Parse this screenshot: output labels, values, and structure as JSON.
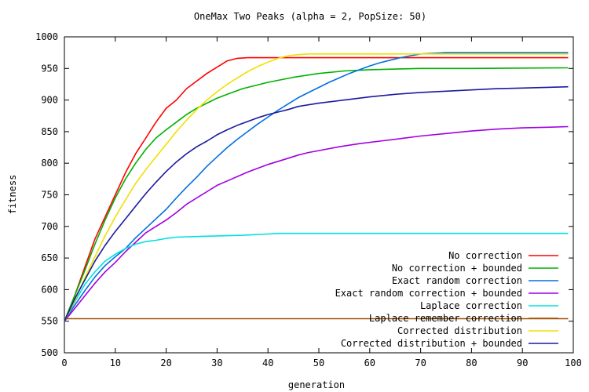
{
  "chart_data": {
    "type": "line",
    "title": "OneMax Two Peaks (alpha = 2, PopSize: 50)",
    "xlabel": "generation",
    "ylabel": "fitness",
    "xlim": [
      0,
      100
    ],
    "ylim": [
      500,
      1000
    ],
    "xticks": [
      "0",
      "10",
      "20",
      "30",
      "40",
      "50",
      "60",
      "70",
      "80",
      "90",
      "100"
    ],
    "yticks": [
      "500",
      "550",
      "600",
      "650",
      "700",
      "750",
      "800",
      "850",
      "900",
      "950",
      "1000"
    ],
    "grid": false,
    "legend_position": "bottom-right",
    "series": [
      {
        "name": "No correction",
        "color": "#ff0000",
        "points": [
          [
            0,
            550
          ],
          [
            2,
            590
          ],
          [
            4,
            635
          ],
          [
            6,
            680
          ],
          [
            8,
            715
          ],
          [
            10,
            750
          ],
          [
            12,
            785
          ],
          [
            14,
            815
          ],
          [
            16,
            840
          ],
          [
            18,
            865
          ],
          [
            20,
            887
          ],
          [
            22,
            900
          ],
          [
            24,
            918
          ],
          [
            26,
            930
          ],
          [
            28,
            942
          ],
          [
            30,
            952
          ],
          [
            32,
            962
          ],
          [
            34,
            966
          ],
          [
            36,
            967
          ],
          [
            99,
            967
          ]
        ]
      },
      {
        "name": "No correction + bounded",
        "color": "#00b000",
        "points": [
          [
            0,
            550
          ],
          [
            2,
            590
          ],
          [
            4,
            630
          ],
          [
            6,
            672
          ],
          [
            8,
            710
          ],
          [
            10,
            745
          ],
          [
            12,
            775
          ],
          [
            14,
            800
          ],
          [
            16,
            822
          ],
          [
            18,
            840
          ],
          [
            20,
            853
          ],
          [
            22,
            865
          ],
          [
            24,
            877
          ],
          [
            26,
            887
          ],
          [
            28,
            895
          ],
          [
            30,
            903
          ],
          [
            32,
            909
          ],
          [
            35,
            918
          ],
          [
            40,
            928
          ],
          [
            45,
            936
          ],
          [
            50,
            942
          ],
          [
            55,
            946
          ],
          [
            60,
            948
          ],
          [
            70,
            950
          ],
          [
            80,
            950
          ],
          [
            99,
            951
          ]
        ]
      },
      {
        "name": "Exact random correction",
        "color": "#0070e0",
        "points": [
          [
            0,
            550
          ],
          [
            2,
            575
          ],
          [
            4,
            598
          ],
          [
            6,
            620
          ],
          [
            8,
            638
          ],
          [
            10,
            652
          ],
          [
            12,
            665
          ],
          [
            14,
            682
          ],
          [
            16,
            697
          ],
          [
            18,
            712
          ],
          [
            20,
            727
          ],
          [
            22,
            745
          ],
          [
            24,
            762
          ],
          [
            26,
            778
          ],
          [
            28,
            795
          ],
          [
            30,
            810
          ],
          [
            32,
            825
          ],
          [
            34,
            838
          ],
          [
            36,
            850
          ],
          [
            38,
            862
          ],
          [
            40,
            873
          ],
          [
            42,
            884
          ],
          [
            44,
            894
          ],
          [
            46,
            904
          ],
          [
            48,
            912
          ],
          [
            50,
            920
          ],
          [
            52,
            928
          ],
          [
            54,
            935
          ],
          [
            56,
            942
          ],
          [
            58,
            948
          ],
          [
            60,
            954
          ],
          [
            62,
            959
          ],
          [
            64,
            963
          ],
          [
            66,
            967
          ],
          [
            68,
            970
          ],
          [
            70,
            973
          ],
          [
            75,
            975
          ],
          [
            99,
            975
          ]
        ]
      },
      {
        "name": "Exact random correction + bounded",
        "color": "#a000e0",
        "points": [
          [
            0,
            550
          ],
          [
            2,
            570
          ],
          [
            4,
            590
          ],
          [
            6,
            610
          ],
          [
            8,
            628
          ],
          [
            10,
            643
          ],
          [
            12,
            660
          ],
          [
            14,
            675
          ],
          [
            16,
            690
          ],
          [
            18,
            700
          ],
          [
            20,
            710
          ],
          [
            22,
            722
          ],
          [
            24,
            735
          ],
          [
            26,
            745
          ],
          [
            28,
            755
          ],
          [
            30,
            765
          ],
          [
            32,
            772
          ],
          [
            34,
            779
          ],
          [
            36,
            786
          ],
          [
            38,
            792
          ],
          [
            40,
            798
          ],
          [
            42,
            803
          ],
          [
            44,
            808
          ],
          [
            46,
            813
          ],
          [
            48,
            817
          ],
          [
            50,
            820
          ],
          [
            54,
            826
          ],
          [
            58,
            831
          ],
          [
            62,
            835
          ],
          [
            66,
            839
          ],
          [
            70,
            843
          ],
          [
            75,
            847
          ],
          [
            80,
            851
          ],
          [
            85,
            854
          ],
          [
            90,
            856
          ],
          [
            95,
            857
          ],
          [
            99,
            858
          ]
        ]
      },
      {
        "name": "Laplace correction",
        "color": "#00e0e0",
        "points": [
          [
            0,
            550
          ],
          [
            2,
            580
          ],
          [
            4,
            608
          ],
          [
            6,
            628
          ],
          [
            8,
            645
          ],
          [
            10,
            656
          ],
          [
            12,
            665
          ],
          [
            14,
            672
          ],
          [
            16,
            676
          ],
          [
            18,
            678
          ],
          [
            20,
            681
          ],
          [
            22,
            683
          ],
          [
            26,
            684
          ],
          [
            30,
            685
          ],
          [
            35,
            686
          ],
          [
            40,
            688
          ],
          [
            42,
            689
          ],
          [
            99,
            689
          ]
        ]
      },
      {
        "name": "Laplace remember correction",
        "color": "#a05000",
        "points": [
          [
            0,
            554
          ],
          [
            99,
            554
          ]
        ]
      },
      {
        "name": "Corrected distribution",
        "color": "#f0e000",
        "points": [
          [
            0,
            550
          ],
          [
            2,
            582
          ],
          [
            4,
            618
          ],
          [
            6,
            652
          ],
          [
            8,
            685
          ],
          [
            10,
            715
          ],
          [
            12,
            742
          ],
          [
            14,
            768
          ],
          [
            16,
            790
          ],
          [
            18,
            810
          ],
          [
            20,
            830
          ],
          [
            22,
            850
          ],
          [
            24,
            868
          ],
          [
            26,
            885
          ],
          [
            28,
            900
          ],
          [
            30,
            913
          ],
          [
            32,
            925
          ],
          [
            34,
            935
          ],
          [
            36,
            945
          ],
          [
            38,
            953
          ],
          [
            40,
            960
          ],
          [
            42,
            966
          ],
          [
            44,
            970
          ],
          [
            46,
            972
          ],
          [
            48,
            973
          ],
          [
            99,
            973
          ]
        ]
      },
      {
        "name": "Corrected distribution + bounded",
        "color": "#1a1aa0",
        "points": [
          [
            0,
            550
          ],
          [
            2,
            585
          ],
          [
            4,
            615
          ],
          [
            6,
            645
          ],
          [
            8,
            670
          ],
          [
            10,
            692
          ],
          [
            12,
            712
          ],
          [
            14,
            732
          ],
          [
            16,
            752
          ],
          [
            18,
            770
          ],
          [
            20,
            787
          ],
          [
            22,
            802
          ],
          [
            24,
            815
          ],
          [
            26,
            826
          ],
          [
            28,
            835
          ],
          [
            30,
            845
          ],
          [
            32,
            853
          ],
          [
            34,
            860
          ],
          [
            36,
            866
          ],
          [
            38,
            872
          ],
          [
            40,
            877
          ],
          [
            42,
            881
          ],
          [
            44,
            885
          ],
          [
            46,
            890
          ],
          [
            50,
            895
          ],
          [
            55,
            900
          ],
          [
            60,
            905
          ],
          [
            65,
            909
          ],
          [
            70,
            912
          ],
          [
            75,
            914
          ],
          [
            80,
            916
          ],
          [
            85,
            918
          ],
          [
            90,
            919
          ],
          [
            99,
            921
          ]
        ]
      }
    ]
  }
}
